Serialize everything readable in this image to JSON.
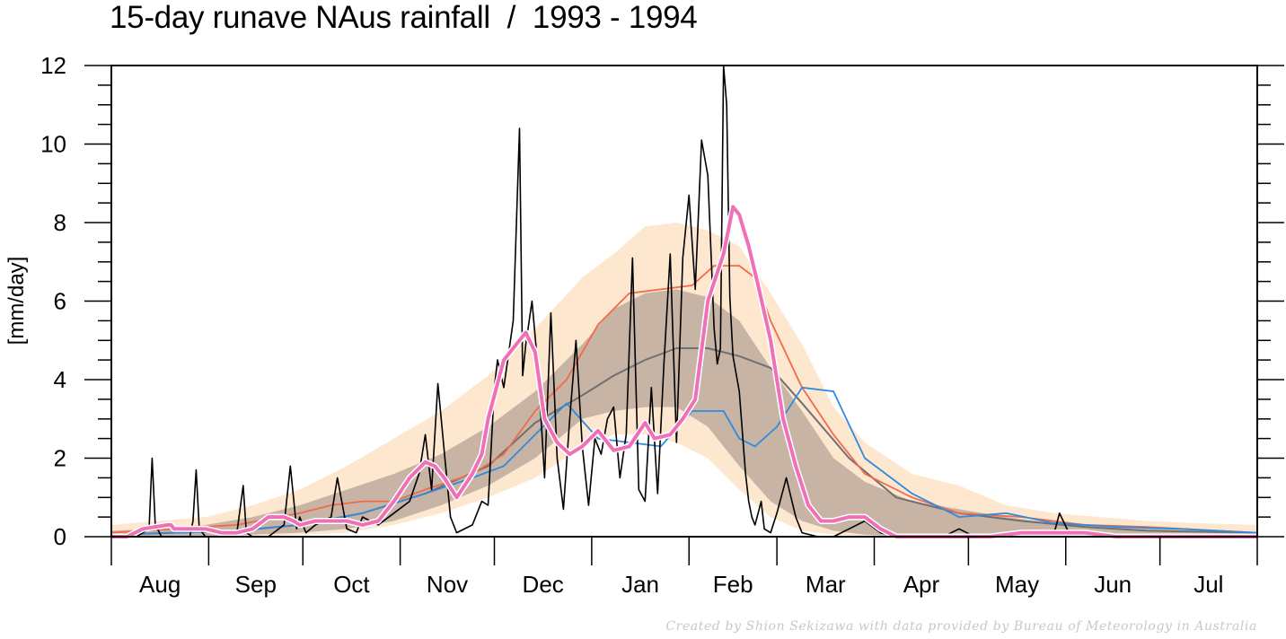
{
  "title": "15-day runave NAus rainfall  /  1993 - 1994",
  "credit": "Created by Shion Sekizawa with data provided by Bureau of Meteorology in Australia",
  "chart_data": {
    "type": "line",
    "title": "15-day runave NAus rainfall  /  1993 - 1994",
    "xlabel": "",
    "ylabel": "[mm/day]",
    "ylim": [
      0,
      12
    ],
    "yticks": [
      0,
      2,
      4,
      6,
      8,
      10,
      12
    ],
    "xlim_days": [
      0,
      365
    ],
    "month_labels": [
      "Aug",
      "Sep",
      "Oct",
      "Nov",
      "Dec",
      "Jan",
      "Feb",
      "Mar",
      "Apr",
      "May",
      "Jun",
      "Jul"
    ],
    "month_starts_day": [
      0,
      31,
      61,
      92,
      122,
      153,
      184,
      212,
      243,
      273,
      304,
      334
    ],
    "grid": false,
    "legend": "none",
    "colors": {
      "outer_band": "#fde7cf",
      "inner_band": "#c8b4a4",
      "median": "#707070",
      "mean": "#f06a4c",
      "climatology_2": "#2f8be0",
      "daily": "#000000",
      "runave": "#f070b8"
    },
    "series": [
      {
        "role": "outer_band",
        "x": [
          0,
          15,
          30,
          45,
          60,
          75,
          90,
          105,
          120,
          135,
          150,
          160,
          170,
          180,
          190,
          200,
          210,
          220,
          230,
          240,
          255,
          270,
          285,
          300,
          315,
          330,
          345,
          365
        ],
        "lower": [
          0,
          0,
          0,
          0,
          0.05,
          0.1,
          0.3,
          0.6,
          1.0,
          1.5,
          2.3,
          2.6,
          2.6,
          2.4,
          2.0,
          1.2,
          0.5,
          0.15,
          0.05,
          0,
          0,
          0,
          0,
          0,
          0,
          0,
          0,
          0
        ],
        "upper": [
          0.3,
          0.4,
          0.5,
          0.8,
          1.2,
          1.8,
          2.5,
          3.2,
          4.1,
          5.3,
          6.6,
          7.2,
          7.9,
          8.0,
          7.8,
          7.4,
          6.2,
          4.9,
          3.3,
          2.4,
          1.6,
          1.3,
          0.8,
          0.6,
          0.5,
          0.4,
          0.35,
          0.3
        ]
      },
      {
        "role": "inner_band",
        "x": [
          0,
          15,
          30,
          45,
          60,
          75,
          90,
          105,
          120,
          135,
          150,
          160,
          170,
          180,
          190,
          200,
          210,
          220,
          230,
          240,
          255,
          270,
          285,
          300,
          315,
          330,
          345,
          365
        ],
        "lower": [
          0,
          0,
          0,
          0.05,
          0.1,
          0.2,
          0.4,
          0.8,
          1.3,
          2.0,
          3.0,
          3.2,
          3.3,
          3.3,
          2.8,
          1.8,
          0.9,
          0.4,
          0.15,
          0.05,
          0,
          0,
          0,
          0,
          0,
          0,
          0,
          0
        ],
        "upper": [
          0.15,
          0.2,
          0.3,
          0.5,
          0.8,
          1.2,
          1.6,
          2.1,
          2.8,
          3.7,
          4.9,
          5.8,
          6.2,
          6.3,
          6.1,
          5.5,
          4.3,
          3.2,
          2.0,
          1.4,
          0.9,
          0.7,
          0.5,
          0.35,
          0.25,
          0.2,
          0.15,
          0.1
        ]
      },
      {
        "role": "median",
        "x": [
          0,
          20,
          40,
          60,
          80,
          100,
          120,
          135,
          150,
          160,
          170,
          180,
          190,
          200,
          210,
          220,
          235,
          250,
          270,
          290,
          310,
          330,
          365
        ],
        "y": [
          0.05,
          0.1,
          0.15,
          0.3,
          0.6,
          1.1,
          1.8,
          2.9,
          3.6,
          4.1,
          4.5,
          4.8,
          4.8,
          4.6,
          4.3,
          3.4,
          2.0,
          1.0,
          0.6,
          0.4,
          0.25,
          0.15,
          0.1
        ]
      },
      {
        "role": "mean",
        "x": [
          0,
          20,
          40,
          60,
          70,
          80,
          90,
          100,
          115,
          125,
          135,
          145,
          155,
          165,
          175,
          185,
          192,
          200,
          205,
          210,
          220,
          230,
          240,
          255,
          270,
          290,
          310,
          330,
          365
        ],
        "y": [
          0.1,
          0.2,
          0.3,
          0.6,
          0.8,
          0.9,
          0.9,
          1.2,
          1.6,
          2.1,
          3.2,
          4.0,
          5.4,
          6.2,
          6.3,
          6.4,
          6.9,
          6.9,
          6.6,
          5.5,
          3.8,
          2.6,
          1.6,
          1.0,
          0.6,
          0.5,
          0.3,
          0.25,
          0.1
        ]
      },
      {
        "role": "climatology_2",
        "x": [
          0,
          20,
          40,
          60,
          80,
          100,
          115,
          125,
          135,
          145,
          155,
          165,
          175,
          185,
          195,
          200,
          205,
          212,
          220,
          230,
          240,
          255,
          270,
          285,
          300,
          320,
          340,
          365
        ],
        "y": [
          0.05,
          0.1,
          0.15,
          0.3,
          0.6,
          1.1,
          1.5,
          1.8,
          2.6,
          3.4,
          2.5,
          2.4,
          2.3,
          3.2,
          3.2,
          2.5,
          2.3,
          2.8,
          3.8,
          3.7,
          2.0,
          1.1,
          0.5,
          0.6,
          0.35,
          0.25,
          0.2,
          0.1
        ]
      },
      {
        "role": "daily",
        "x": [
          0,
          8,
          12,
          13,
          14,
          16,
          20,
          25,
          26,
          27,
          28,
          30,
          35,
          40,
          42,
          43,
          45,
          50,
          55,
          57,
          59,
          60,
          62,
          65,
          70,
          72,
          75,
          78,
          80,
          85,
          90,
          95,
          98,
          100,
          102,
          104,
          106,
          108,
          110,
          115,
          118,
          120,
          122,
          123,
          125,
          128,
          130,
          131,
          132,
          134,
          136,
          138,
          140,
          142,
          144,
          146,
          148,
          150,
          152,
          154,
          156,
          158,
          160,
          162,
          164,
          166,
          168,
          170,
          172,
          174,
          176,
          178,
          180,
          182,
          184,
          186,
          188,
          190,
          192,
          193,
          194,
          195,
          196,
          197,
          198,
          200,
          202,
          203,
          204,
          205,
          206,
          207,
          208,
          210,
          212,
          215,
          218,
          220,
          225,
          230,
          235,
          240,
          245,
          250,
          255,
          260,
          265,
          270,
          275,
          280,
          285,
          290,
          295,
          300,
          302,
          305,
          310,
          320,
          330,
          340,
          350,
          365
        ],
        "y": [
          0,
          0,
          0.2,
          2.0,
          0.3,
          0,
          0,
          0,
          0.4,
          1.7,
          0.2,
          0,
          0,
          0.1,
          1.3,
          0.1,
          0,
          0,
          0.3,
          1.8,
          0.2,
          0.5,
          0.1,
          0.3,
          0.5,
          1.5,
          0.2,
          0.1,
          0.5,
          0.3,
          0.6,
          0.9,
          1.6,
          2.6,
          1.2,
          3.9,
          2.2,
          0.5,
          0.1,
          0.3,
          0.9,
          0.8,
          3.8,
          4.5,
          3.8,
          5.5,
          10.4,
          4.1,
          4.9,
          6.0,
          4.2,
          1.5,
          5.7,
          2.0,
          0.7,
          3.0,
          5.0,
          2.3,
          0.8,
          2.5,
          2.1,
          3.0,
          3.3,
          1.5,
          2.6,
          7.1,
          1.2,
          0.9,
          3.8,
          1.1,
          4.4,
          7.2,
          2.4,
          7.1,
          8.7,
          6.3,
          10.1,
          9.2,
          5.3,
          4.4,
          4.8,
          12.0,
          11.0,
          6.1,
          4.6,
          3.7,
          1.6,
          0.9,
          0.5,
          0.3,
          0.6,
          0.9,
          0.2,
          0.1,
          0.6,
          1.5,
          0.5,
          0.1,
          0,
          0,
          0.2,
          0.4,
          0.1,
          0,
          0,
          0,
          0,
          0.2,
          0,
          0,
          0.1,
          0,
          0,
          0,
          0.6,
          0.1,
          0,
          0,
          0,
          0,
          0,
          0
        ]
      },
      {
        "role": "runave",
        "x": [
          0,
          5,
          10,
          18,
          19,
          20,
          30,
          35,
          40,
          45,
          50,
          55,
          58,
          60,
          65,
          70,
          75,
          80,
          85,
          90,
          95,
          100,
          103,
          106,
          110,
          115,
          118,
          120,
          125,
          128,
          132,
          135,
          138,
          142,
          146,
          150,
          155,
          160,
          165,
          170,
          173,
          178,
          182,
          186,
          190,
          195,
          198,
          200,
          203,
          206,
          210,
          214,
          218,
          222,
          226,
          230,
          235,
          240,
          245,
          250,
          255,
          260,
          270,
          280,
          290,
          300,
          310,
          320,
          330,
          340,
          350,
          365
        ],
        "y": [
          0,
          0,
          0.2,
          0.3,
          0.3,
          0.2,
          0.2,
          0.1,
          0.1,
          0.2,
          0.5,
          0.5,
          0.4,
          0.3,
          0.4,
          0.4,
          0.4,
          0.3,
          0.4,
          0.9,
          1.5,
          1.9,
          1.8,
          1.5,
          1.0,
          1.6,
          2.1,
          3.0,
          4.5,
          4.8,
          5.2,
          4.7,
          3.0,
          2.4,
          2.1,
          2.3,
          2.7,
          2.2,
          2.3,
          2.9,
          2.5,
          2.6,
          3.0,
          3.5,
          6.0,
          7.2,
          8.4,
          8.2,
          7.4,
          6.4,
          5.0,
          3.0,
          1.8,
          0.8,
          0.4,
          0.4,
          0.5,
          0.5,
          0.2,
          0,
          0,
          0,
          0,
          0,
          0.1,
          0.1,
          0.1,
          0,
          0,
          0,
          0,
          0
        ]
      }
    ]
  }
}
